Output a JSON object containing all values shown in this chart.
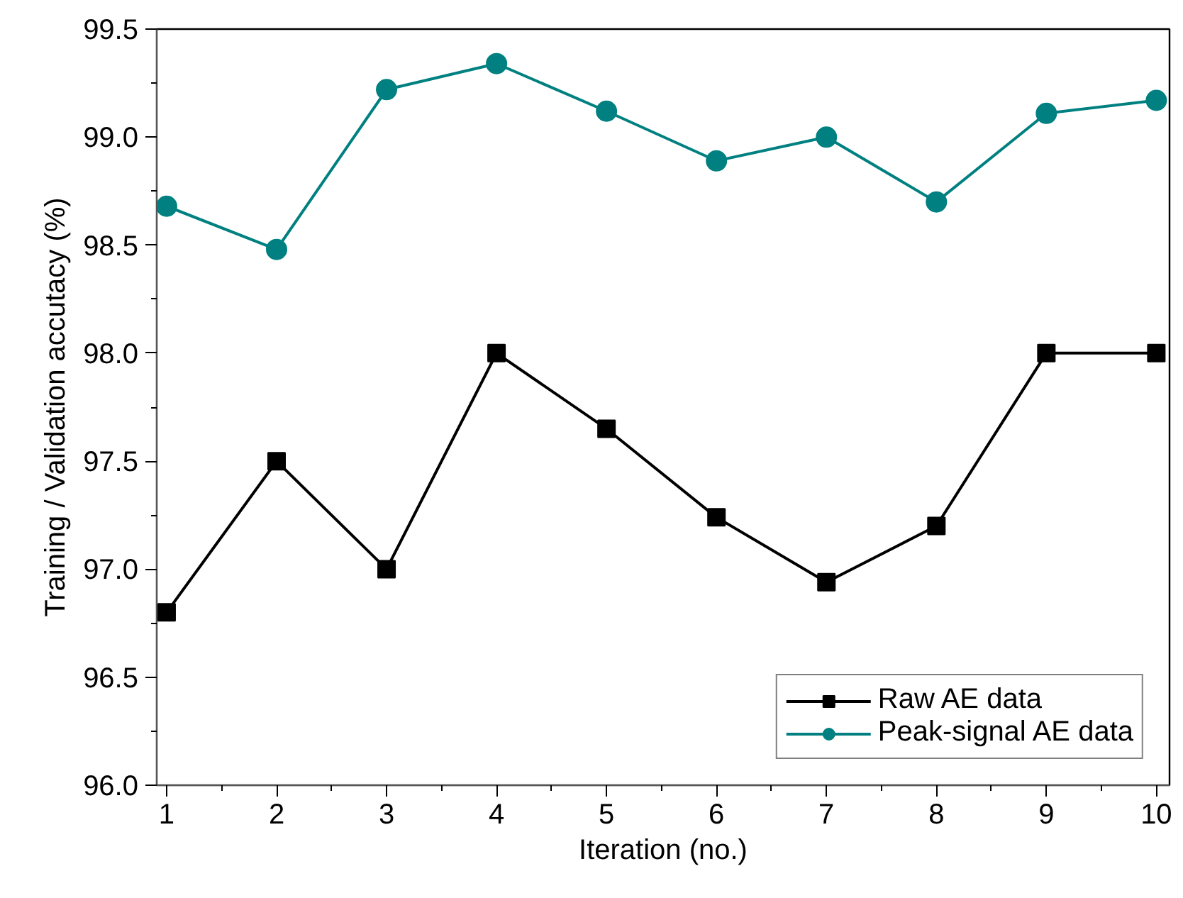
{
  "chart_data": {
    "type": "line",
    "xlabel": "Iteration (no.)",
    "ylabel": "Training / Validation accutacy (%)",
    "x": [
      1,
      2,
      3,
      4,
      5,
      6,
      7,
      8,
      9,
      10
    ],
    "xlim": [
      0.91,
      10.12
    ],
    "xticks": [
      1,
      2,
      3,
      4,
      5,
      6,
      7,
      8,
      9,
      10
    ],
    "ylim": [
      96.0,
      99.5
    ],
    "yticks": [
      {
        "value": 96.0,
        "label": "96.0"
      },
      {
        "value": 96.5,
        "label": "96.5"
      },
      {
        "value": 97.0,
        "label": "97.0"
      },
      {
        "value": 97.5,
        "label": "97.5"
      },
      {
        "value": 98.0,
        "label": "98.0"
      },
      {
        "value": 98.5,
        "label": "98.5"
      },
      {
        "value": 99.0,
        "label": "99.0"
      },
      {
        "value": 99.5,
        "label": "99.5"
      }
    ],
    "series": [
      {
        "name": "Raw AE data",
        "color": "#000000",
        "marker": "square",
        "values": [
          96.8,
          97.5,
          97.0,
          98.0,
          97.65,
          97.24,
          96.94,
          97.2,
          98.0,
          98.0
        ]
      },
      {
        "name": "Peak-signal AE data",
        "color": "#008080",
        "marker": "circle",
        "values": [
          98.68,
          98.48,
          99.22,
          99.34,
          99.12,
          98.89,
          99.0,
          98.7,
          99.11,
          99.17
        ]
      }
    ],
    "grid": false,
    "legend": "bottom right",
    "line_style": "solid"
  }
}
